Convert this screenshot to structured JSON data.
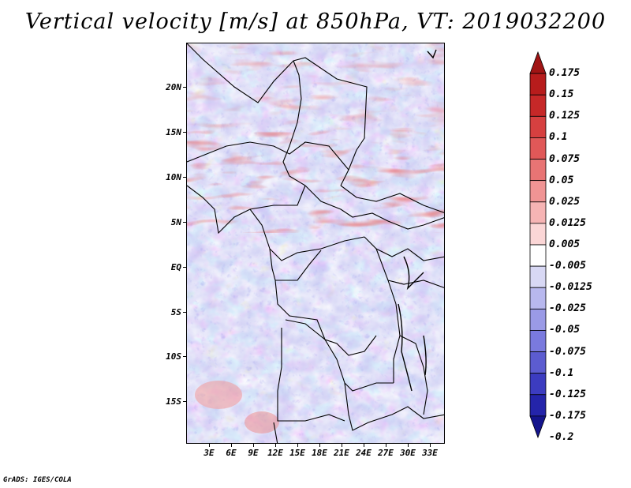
{
  "title": "Vertical velocity [m/s] at 850hPa, VT: 2019032200",
  "lat_labels": [
    "20N",
    "15N",
    "10N",
    "5N",
    "EQ",
    "5S",
    "10S",
    "15S"
  ],
  "lon_labels": [
    "3E",
    "6E",
    "9E",
    "12E",
    "15E",
    "18E",
    "21E",
    "24E",
    "27E",
    "30E",
    "33E"
  ],
  "colorbar": {
    "labels": [
      "0.175",
      "0.15",
      "0.125",
      "0.1",
      "0.075",
      "0.05",
      "0.025",
      "0.0125",
      "0.005",
      "-0.005",
      "-0.0125",
      "-0.025",
      "-0.05",
      "-0.075",
      "-0.1",
      "-0.125",
      "-0.175",
      "-0.2"
    ],
    "colors": [
      "#a01414",
      "#b71c1c",
      "#c62828",
      "#d64040",
      "#e05858",
      "#e87474",
      "#f09494",
      "#f6b4b4",
      "#fbd6d6",
      "#ffffff",
      "#d8d8f4",
      "#b8b8ee",
      "#9a9ae6",
      "#7a7ade",
      "#5c5cd0",
      "#3c3cc0",
      "#2424aa",
      "#14148c"
    ]
  },
  "footer": "GrADS: IGES/COLA",
  "palette": {
    "red": "#d03030",
    "blue": "#4848d8",
    "white": "#ffffff"
  }
}
